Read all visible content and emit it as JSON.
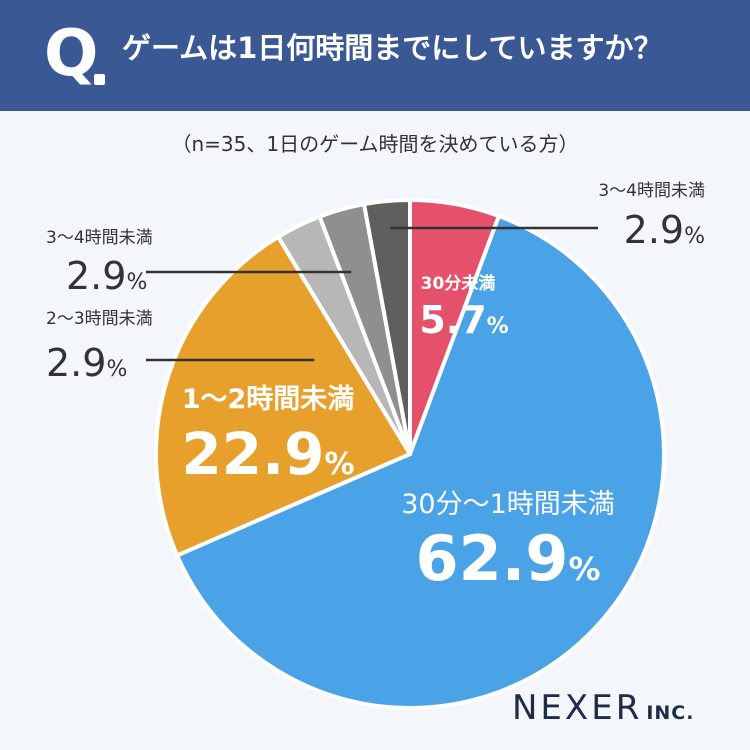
{
  "header": {
    "q_letter": "Q",
    "question": "ゲームは1日何時間までにしていますか？"
  },
  "subtitle": "（n=35、1日のゲーム時間を決めている方）",
  "logo": {
    "name": "NEXER",
    "suffix": "INC."
  },
  "chart_data": {
    "type": "pie",
    "title": "ゲームは1日何時間までにしていますか？",
    "subtitle": "（n=35、1日のゲーム時間を決めている方）",
    "unit": "%",
    "start": "12 o'clock",
    "direction": "clockwise",
    "slices": [
      {
        "label": "30分未満",
        "value": 5.7,
        "color": "#e5506a"
      },
      {
        "label": "30分〜1時間未満",
        "value": 62.9,
        "color": "#4aa3e6"
      },
      {
        "label": "1〜2時間未満",
        "value": 22.9,
        "color": "#e8a02c"
      },
      {
        "label": "2〜3時間未満",
        "value": 2.9,
        "color": "#b7b7b7"
      },
      {
        "label": "3〜4時間未満",
        "value": 2.9,
        "color": "#8f8f8f"
      },
      {
        "label": "3〜4時間未満",
        "value": 2.9,
        "color": "#5f5f5f"
      }
    ]
  }
}
